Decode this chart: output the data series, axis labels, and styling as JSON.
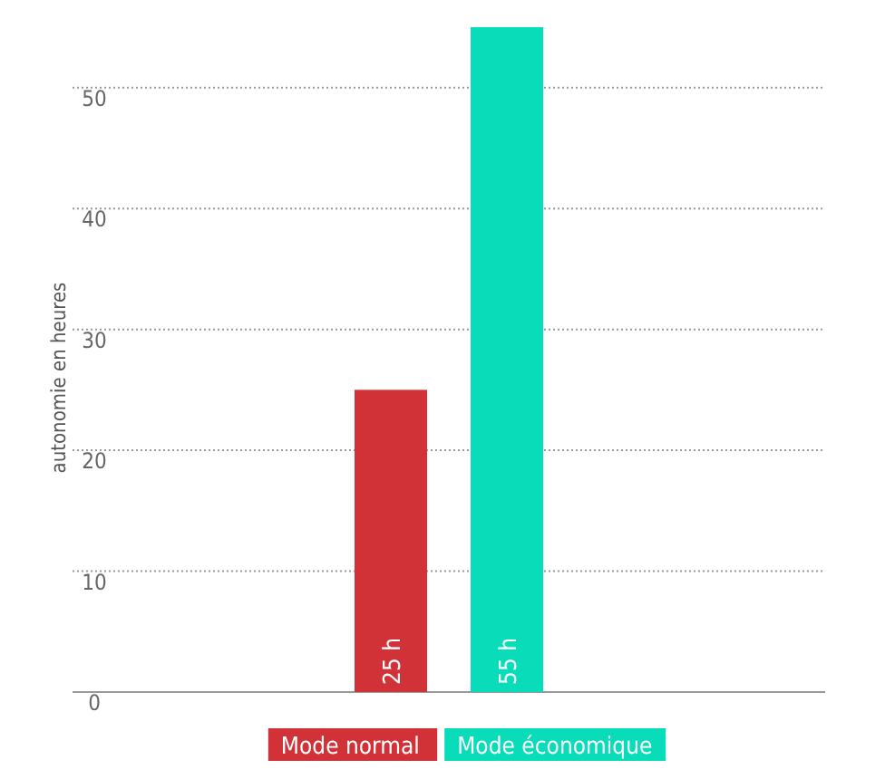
{
  "chart_data": {
    "type": "bar",
    "ylabel": "autonomie en heures",
    "categories": [
      null
    ],
    "series": [
      {
        "name": "Mode normal",
        "color": "#d03238",
        "values": [
          25
        ],
        "value_labels": [
          "25 h"
        ]
      },
      {
        "name": "Mode économique",
        "color": "#08dcb8",
        "values": [
          55
        ],
        "value_labels": [
          "55 h"
        ]
      }
    ],
    "ylim": [
      0,
      55
    ],
    "yticks": [
      0,
      10,
      20,
      30,
      40,
      50
    ],
    "grid": "y",
    "legend": "bottom"
  }
}
